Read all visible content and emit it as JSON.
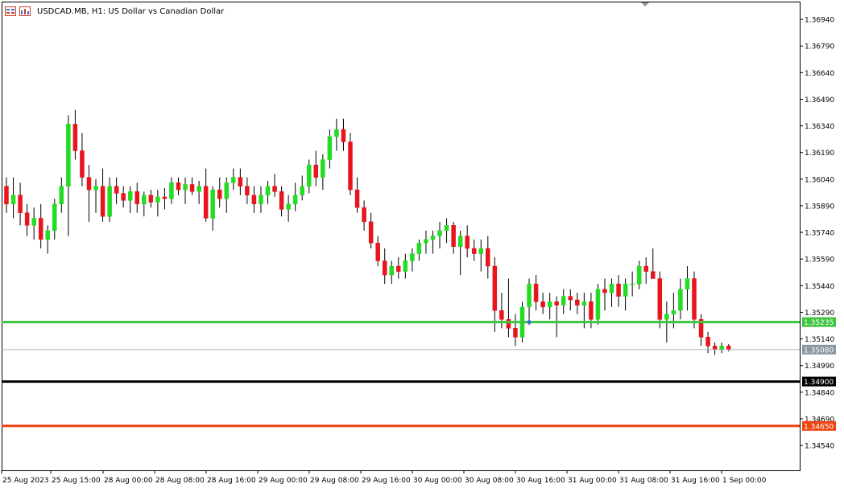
{
  "header": {
    "icons": [
      "chart-window-icon",
      "chart-properties-icon"
    ],
    "symbol": "USDCAD.MB, H1:",
    "description": "US Dollar vs Canadian Dollar"
  },
  "colors": {
    "bull": "#22dd22",
    "bear": "#e8141e",
    "grid_axis": "#000000",
    "level_green": "#3ec43e",
    "level_black": "#000000",
    "level_orange": "#ee4411",
    "current_line": "#a8b4be",
    "current_tag": "#8a96a0"
  },
  "chart_data": {
    "type": "candlestick",
    "symbol": "USDCAD.MB",
    "timeframe": "H1",
    "ylim": [
      1.344,
      1.3704
    ],
    "y_ticks": [
      "1.36940",
      "1.36790",
      "1.36640",
      "1.36490",
      "1.36340",
      "1.36190",
      "1.36040",
      "1.35890",
      "1.35740",
      "1.35590",
      "1.35440",
      "1.35290",
      "1.35140",
      "1.34990",
      "1.34840",
      "1.34690",
      "1.34540"
    ],
    "x_ticks": [
      "25 Aug 2023",
      "25 Aug 15:00",
      "28 Aug 00:00",
      "28 Aug 08:00",
      "28 Aug 16:00",
      "29 Aug 00:00",
      "29 Aug 08:00",
      "29 Aug 16:00",
      "30 Aug 00:00",
      "30 Aug 08:00",
      "30 Aug 16:00",
      "31 Aug 00:00",
      "31 Aug 08:00",
      "31 Aug 16:00",
      "1 Sep 00:00"
    ],
    "levels": [
      {
        "price": 1.35235,
        "label": "1.35235",
        "color": "level_green",
        "style": "thick"
      },
      {
        "price": 1.3508,
        "label": "1.35080",
        "color": "current_line",
        "style": "current"
      },
      {
        "price": 1.349,
        "label": "1.34900",
        "color": "level_black",
        "style": "thick"
      },
      {
        "price": 1.3465,
        "label": "1.34650",
        "color": "level_orange",
        "style": "thick"
      }
    ],
    "candles": [
      [
        1.36,
        1.3605,
        1.3585,
        1.359
      ],
      [
        1.359,
        1.3605,
        1.3582,
        1.3595
      ],
      [
        1.3595,
        1.3602,
        1.3578,
        1.3585
      ],
      [
        1.3585,
        1.359,
        1.3572,
        1.3578
      ],
      [
        1.3578,
        1.3588,
        1.357,
        1.3582
      ],
      [
        1.3582,
        1.359,
        1.3565,
        1.357
      ],
      [
        1.357,
        1.3578,
        1.3562,
        1.3575
      ],
      [
        1.3575,
        1.3593,
        1.357,
        1.359
      ],
      [
        1.359,
        1.3605,
        1.3585,
        1.36
      ],
      [
        1.36,
        1.364,
        1.3572,
        1.3635
      ],
      [
        1.3635,
        1.3643,
        1.3615,
        1.362
      ],
      [
        1.362,
        1.363,
        1.36,
        1.3605
      ],
      [
        1.3605,
        1.3612,
        1.358,
        1.3598
      ],
      [
        1.3598,
        1.3604,
        1.3585,
        1.36
      ],
      [
        1.36,
        1.361,
        1.358,
        1.3583
      ],
      [
        1.3583,
        1.3605,
        1.358,
        1.36
      ],
      [
        1.36,
        1.3605,
        1.359,
        1.3596
      ],
      [
        1.3596,
        1.36,
        1.3588,
        1.3592
      ],
      [
        1.3592,
        1.36,
        1.3585,
        1.3597
      ],
      [
        1.3597,
        1.3602,
        1.3585,
        1.359
      ],
      [
        1.359,
        1.3597,
        1.3583,
        1.3595
      ],
      [
        1.3595,
        1.3598,
        1.3588,
        1.3591
      ],
      [
        1.3591,
        1.3598,
        1.3583,
        1.3594
      ],
      [
        1.3594,
        1.3599,
        1.3587,
        1.3593
      ],
      [
        1.3593,
        1.3605,
        1.359,
        1.3602
      ],
      [
        1.3602,
        1.3605,
        1.3595,
        1.3598
      ],
      [
        1.3598,
        1.3605,
        1.359,
        1.3601
      ],
      [
        1.3601,
        1.3605,
        1.3595,
        1.3597
      ],
      [
        1.3597,
        1.3603,
        1.359,
        1.36
      ],
      [
        1.36,
        1.361,
        1.358,
        1.3582
      ],
      [
        1.3582,
        1.36,
        1.3575,
        1.3598
      ],
      [
        1.3598,
        1.3605,
        1.3588,
        1.3593
      ],
      [
        1.3593,
        1.3605,
        1.3585,
        1.3602
      ],
      [
        1.3602,
        1.361,
        1.3598,
        1.3605
      ],
      [
        1.3605,
        1.361,
        1.3595,
        1.36
      ],
      [
        1.36,
        1.3605,
        1.359,
        1.3595
      ],
      [
        1.3595,
        1.36,
        1.3585,
        1.359
      ],
      [
        1.359,
        1.36,
        1.3585,
        1.3595
      ],
      [
        1.3595,
        1.3603,
        1.359,
        1.36
      ],
      [
        1.36,
        1.3607,
        1.3594,
        1.3597
      ],
      [
        1.3597,
        1.36,
        1.3583,
        1.3587
      ],
      [
        1.3587,
        1.3595,
        1.358,
        1.359
      ],
      [
        1.359,
        1.3602,
        1.3586,
        1.3595
      ],
      [
        1.3595,
        1.3606,
        1.3592,
        1.36
      ],
      [
        1.36,
        1.3615,
        1.3596,
        1.3612
      ],
      [
        1.3612,
        1.362,
        1.36,
        1.3605
      ],
      [
        1.3605,
        1.3618,
        1.3598,
        1.3615
      ],
      [
        1.3615,
        1.3632,
        1.361,
        1.3628
      ],
      [
        1.3628,
        1.3638,
        1.362,
        1.3632
      ],
      [
        1.3632,
        1.3638,
        1.362,
        1.3625
      ],
      [
        1.3625,
        1.363,
        1.3595,
        1.3598
      ],
      [
        1.3598,
        1.3605,
        1.3585,
        1.3588
      ],
      [
        1.3588,
        1.3592,
        1.3575,
        1.358
      ],
      [
        1.358,
        1.3585,
        1.3565,
        1.3568
      ],
      [
        1.3568,
        1.3572,
        1.3555,
        1.3558
      ],
      [
        1.3558,
        1.3565,
        1.3545,
        1.355
      ],
      [
        1.355,
        1.3558,
        1.3545,
        1.3555
      ],
      [
        1.3555,
        1.356,
        1.3548,
        1.3552
      ],
      [
        1.3552,
        1.3562,
        1.3548,
        1.3558
      ],
      [
        1.3558,
        1.3565,
        1.3552,
        1.3562
      ],
      [
        1.3562,
        1.357,
        1.3558,
        1.3568
      ],
      [
        1.3568,
        1.3575,
        1.3562,
        1.357
      ],
      [
        1.357,
        1.3575,
        1.3562,
        1.3572
      ],
      [
        1.3572,
        1.358,
        1.3565,
        1.3575
      ],
      [
        1.3575,
        1.3582,
        1.3568,
        1.3578
      ],
      [
        1.3578,
        1.358,
        1.3562,
        1.3566
      ],
      [
        1.3566,
        1.3575,
        1.355,
        1.3572
      ],
      [
        1.3572,
        1.3578,
        1.356,
        1.3565
      ],
      [
        1.3565,
        1.357,
        1.3558,
        1.3562
      ],
      [
        1.3562,
        1.357,
        1.3552,
        1.3565
      ],
      [
        1.3565,
        1.3572,
        1.3548,
        1.3555
      ],
      [
        1.3555,
        1.356,
        1.3518,
        1.353
      ],
      [
        1.353,
        1.354,
        1.352,
        1.3525
      ],
      [
        1.3525,
        1.3548,
        1.3515,
        1.352
      ],
      [
        1.352,
        1.3528,
        1.351,
        1.3515
      ],
      [
        1.3515,
        1.3535,
        1.3512,
        1.3532
      ],
      [
        1.3532,
        1.3548,
        1.3525,
        1.3545
      ],
      [
        1.3545,
        1.355,
        1.353,
        1.3535
      ],
      [
        1.3535,
        1.354,
        1.3528,
        1.3532
      ],
      [
        1.3532,
        1.354,
        1.3525,
        1.3535
      ],
      [
        1.3535,
        1.3538,
        1.3515,
        1.3533
      ],
      [
        1.3533,
        1.3542,
        1.3528,
        1.3538
      ],
      [
        1.3538,
        1.3542,
        1.353,
        1.3536
      ],
      [
        1.3536,
        1.354,
        1.3528,
        1.3533
      ],
      [
        1.3533,
        1.354,
        1.352,
        1.3535
      ],
      [
        1.3535,
        1.354,
        1.352,
        1.3525
      ],
      [
        1.3525,
        1.3545,
        1.3522,
        1.3542
      ],
      [
        1.3542,
        1.3548,
        1.353,
        1.354
      ],
      [
        1.354,
        1.3548,
        1.3532,
        1.3545
      ],
      [
        1.3545,
        1.355,
        1.3532,
        1.3538
      ],
      [
        1.3538,
        1.3548,
        1.353,
        1.3545
      ],
      [
        1.3545,
        1.3552,
        1.3538,
        1.3545
      ],
      [
        1.3545,
        1.3558,
        1.3542,
        1.3555
      ],
      [
        1.3555,
        1.356,
        1.3545,
        1.3552
      ],
      [
        1.3552,
        1.3565,
        1.3548,
        1.3548
      ],
      [
        1.3548,
        1.3552,
        1.352,
        1.3525
      ],
      [
        1.3525,
        1.3535,
        1.3512,
        1.3528
      ],
      [
        1.3528,
        1.354,
        1.352,
        1.353
      ],
      [
        1.353,
        1.3548,
        1.3525,
        1.3542
      ],
      [
        1.3542,
        1.3555,
        1.353,
        1.3548
      ],
      [
        1.3548,
        1.3552,
        1.352,
        1.3525
      ],
      [
        1.3525,
        1.3528,
        1.351,
        1.3515
      ],
      [
        1.3515,
        1.3518,
        1.3506,
        1.351
      ],
      [
        1.351,
        1.3512,
        1.3505,
        1.3508
      ],
      [
        1.3508,
        1.3512,
        1.3506,
        1.351
      ],
      [
        1.351,
        1.3511,
        1.3507,
        1.3508
      ]
    ]
  }
}
